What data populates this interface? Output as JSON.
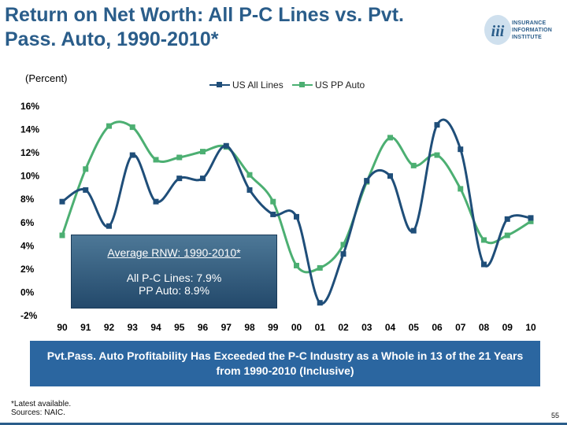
{
  "slide": {
    "title_line1": "Return on Net Worth: All P-C Lines vs.   Pvt.",
    "title_line2": "Pass. Auto, 1990-2010*",
    "logo_lines": [
      "INSURANCE",
      "INFORMATION",
      "INSTITUTE"
    ],
    "logo_mark": "iii",
    "unit_label": "(Percent)",
    "banner": "Pvt.Pass. Auto Profitability Has Exceeded the P-C Industry as a Whole in 13 of the 21 Years from 1990-2010 (Inclusive)",
    "footnote_1": "*Latest available.",
    "footnote_2": "Sources: NAIC.",
    "page_number": "55"
  },
  "average_box": {
    "title": "Average RNW: 1990-2010*",
    "line1": "All P-C Lines: 7.9%",
    "line2": "PP Auto: 8.9%"
  },
  "colors": {
    "title": "#2a5d8a",
    "all_lines": "#1f4e79",
    "pp_auto": "#4caf72",
    "banner": "#2b66a0"
  },
  "chart_data": {
    "type": "line",
    "title": "",
    "xlabel": "",
    "ylabel": "(Percent)",
    "categories": [
      "90",
      "91",
      "92",
      "93",
      "94",
      "95",
      "96",
      "97",
      "98",
      "99",
      "00",
      "01",
      "02",
      "03",
      "04",
      "05",
      "06",
      "07",
      "08",
      "09",
      "10"
    ],
    "series": [
      {
        "name": "US All Lines",
        "color": "#1f4e79",
        "values": [
          7.8,
          8.8,
          5.7,
          11.8,
          7.8,
          9.8,
          9.8,
          12.6,
          8.8,
          6.7,
          6.5,
          -0.9,
          3.3,
          9.6,
          10.0,
          5.3,
          14.4,
          12.3,
          2.4,
          6.3,
          6.4
        ]
      },
      {
        "name": "US PP Auto",
        "color": "#4caf72",
        "values": [
          4.9,
          10.6,
          14.3,
          14.2,
          11.4,
          11.6,
          12.1,
          12.5,
          10.1,
          7.8,
          2.3,
          2.1,
          4.1,
          9.5,
          13.3,
          10.9,
          11.8,
          8.9,
          4.5,
          4.9,
          6.1
        ]
      }
    ],
    "ylim": [
      -2,
      16
    ],
    "yticks": [
      -2,
      0,
      2,
      4,
      6,
      8,
      10,
      12,
      14,
      16
    ],
    "ytick_labels": [
      "-2%",
      "0%",
      "2%",
      "4%",
      "6%",
      "8%",
      "10%",
      "12%",
      "14%",
      "16%"
    ],
    "grid": false,
    "legend": "top"
  }
}
